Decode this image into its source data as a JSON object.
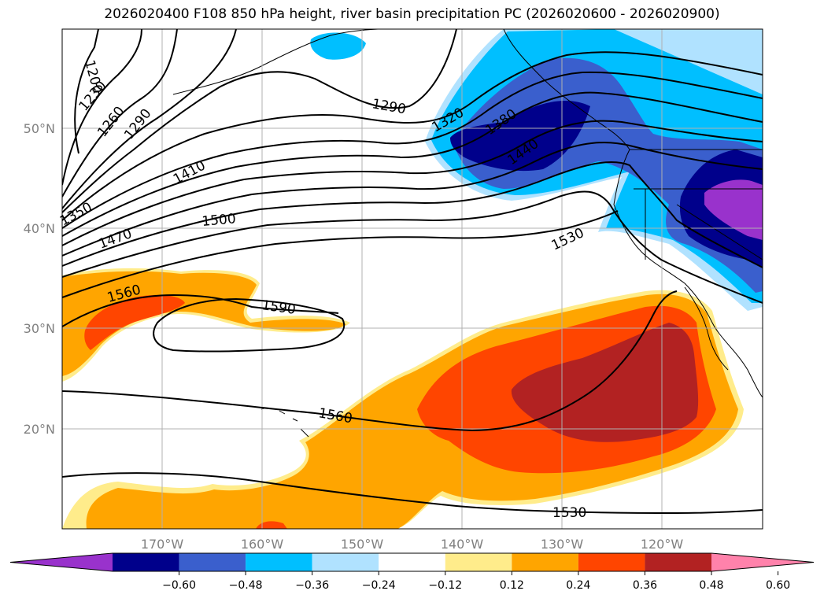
{
  "title": "2026020400 F108 850 hPa height, river basin precipitation PC (2026020600 - 2026020900)",
  "lon_ticks": [
    "170°W",
    "160°W",
    "150°W",
    "140°W",
    "130°W",
    "120°W"
  ],
  "lat_ticks": [
    "50°N",
    "40°N",
    "30°N",
    "20°N"
  ],
  "contour_labels": [
    "1200",
    "1230",
    "1260",
    "1290",
    "1290",
    "1320",
    "1350",
    "1380",
    "1410",
    "1440",
    "1470",
    "1500",
    "1530",
    "1530",
    "1560",
    "1560",
    "1590"
  ],
  "colorbar": {
    "colors": [
      "#9932cc",
      "#00008b",
      "#3a5fcd",
      "#00bfff",
      "#b0e2ff",
      "#ffffff",
      "#ffec8b",
      "#ffa500",
      "#ff4500",
      "#b22222",
      "#ff82ab"
    ],
    "tick_labels": [
      "−0.60",
      "−0.48",
      "−0.36",
      "−0.24",
      "−0.12",
      "0.12",
      "0.24",
      "0.36",
      "0.48",
      "0.60"
    ]
  }
}
